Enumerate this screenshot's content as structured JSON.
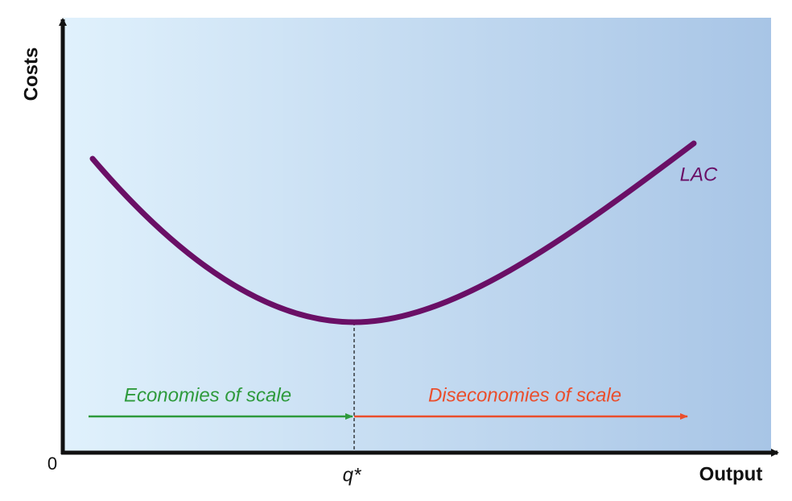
{
  "axes": {
    "y_label": "Costs",
    "x_label": "Output",
    "origin": "0"
  },
  "curve": {
    "label": "LAC"
  },
  "markers": {
    "q_star": "q*"
  },
  "regions": {
    "economies": "Economies of scale",
    "diseconomies": "Diseconomies of scale"
  }
}
